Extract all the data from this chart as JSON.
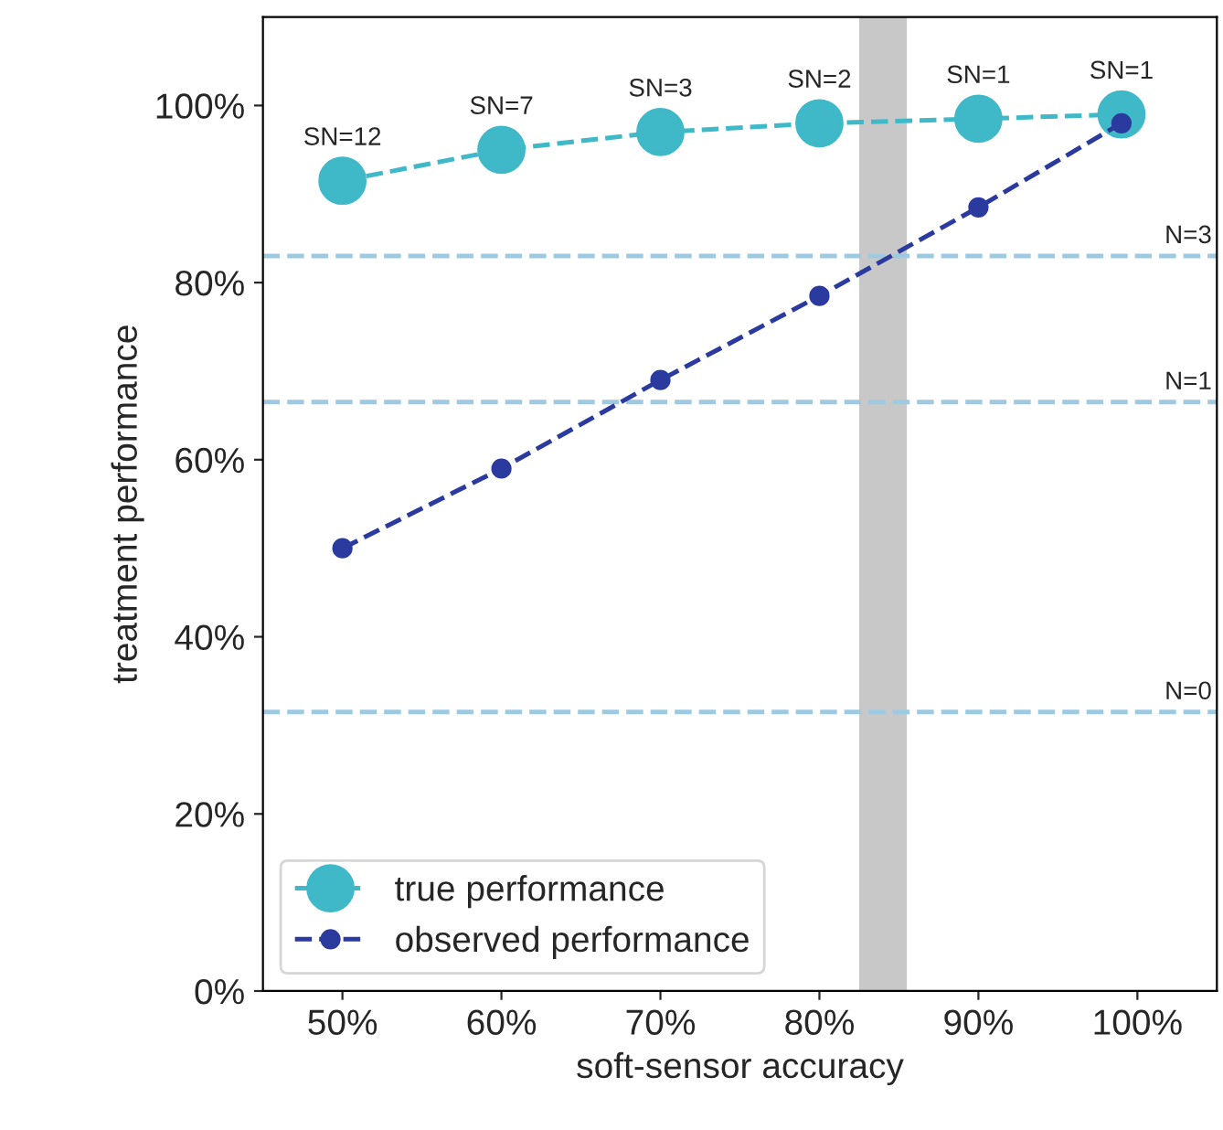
{
  "chart_data": {
    "type": "line",
    "xlabel": "soft-sensor accuracy",
    "ylabel": "treatment performance",
    "xlim": [
      45,
      105
    ],
    "ylim": [
      0,
      110
    ],
    "xticks": [
      {
        "value": 50,
        "label": "50%"
      },
      {
        "value": 60,
        "label": "60%"
      },
      {
        "value": 70,
        "label": "70%"
      },
      {
        "value": 80,
        "label": "80%"
      },
      {
        "value": 90,
        "label": "90%"
      },
      {
        "value": 100,
        "label": "100%"
      }
    ],
    "yticks": [
      {
        "value": 0,
        "label": "0%"
      },
      {
        "value": 20,
        "label": "20%"
      },
      {
        "value": 40,
        "label": "40%"
      },
      {
        "value": 60,
        "label": "60%"
      },
      {
        "value": 80,
        "label": "80%"
      },
      {
        "value": 100,
        "label": "100%"
      }
    ],
    "series": [
      {
        "name": "true performance",
        "color": "#3fb8c8",
        "x": [
          50,
          60,
          70,
          80,
          90,
          99
        ],
        "values": [
          91.5,
          95,
          97,
          98,
          98.5,
          99
        ],
        "marker": "circle",
        "line_style": "dashed"
      },
      {
        "name": "observed performance",
        "color": "#2b3a9e",
        "x": [
          50,
          60,
          70,
          80,
          90,
          99
        ],
        "values": [
          50,
          59,
          69,
          78.5,
          88.5,
          98
        ],
        "marker": "circle",
        "line_style": "dashed"
      }
    ],
    "ref_lines": [
      {
        "axis": "y",
        "value": 83,
        "color": "#9ecae1",
        "line_style": "dashed"
      },
      {
        "axis": "y",
        "value": 66.5,
        "color": "#9ecae1",
        "line_style": "dashed"
      },
      {
        "axis": "y",
        "value": 31.5,
        "color": "#9ecae1",
        "line_style": "dashed"
      }
    ],
    "bands": [
      {
        "axis": "x",
        "from": 82.5,
        "to": 85.5,
        "color": "#c8c8c8"
      }
    ],
    "annotations": [
      {
        "text": "SN=12",
        "x": 50,
        "y": 91.5
      },
      {
        "text": "SN=7",
        "x": 60,
        "y": 95
      },
      {
        "text": "SN=3",
        "x": 70,
        "y": 97
      },
      {
        "text": "SN=2",
        "x": 80,
        "y": 98
      },
      {
        "text": "SN=1",
        "x": 90,
        "y": 98.5
      },
      {
        "text": "SN=1",
        "x": 99,
        "y": 99
      },
      {
        "text": "N=3",
        "x": 103.2,
        "y": 83
      },
      {
        "text": "N=1",
        "x": 103.2,
        "y": 66.5
      },
      {
        "text": "N=0",
        "x": 103.2,
        "y": 31.5
      }
    ],
    "legend": "bottom left",
    "grid": false
  }
}
